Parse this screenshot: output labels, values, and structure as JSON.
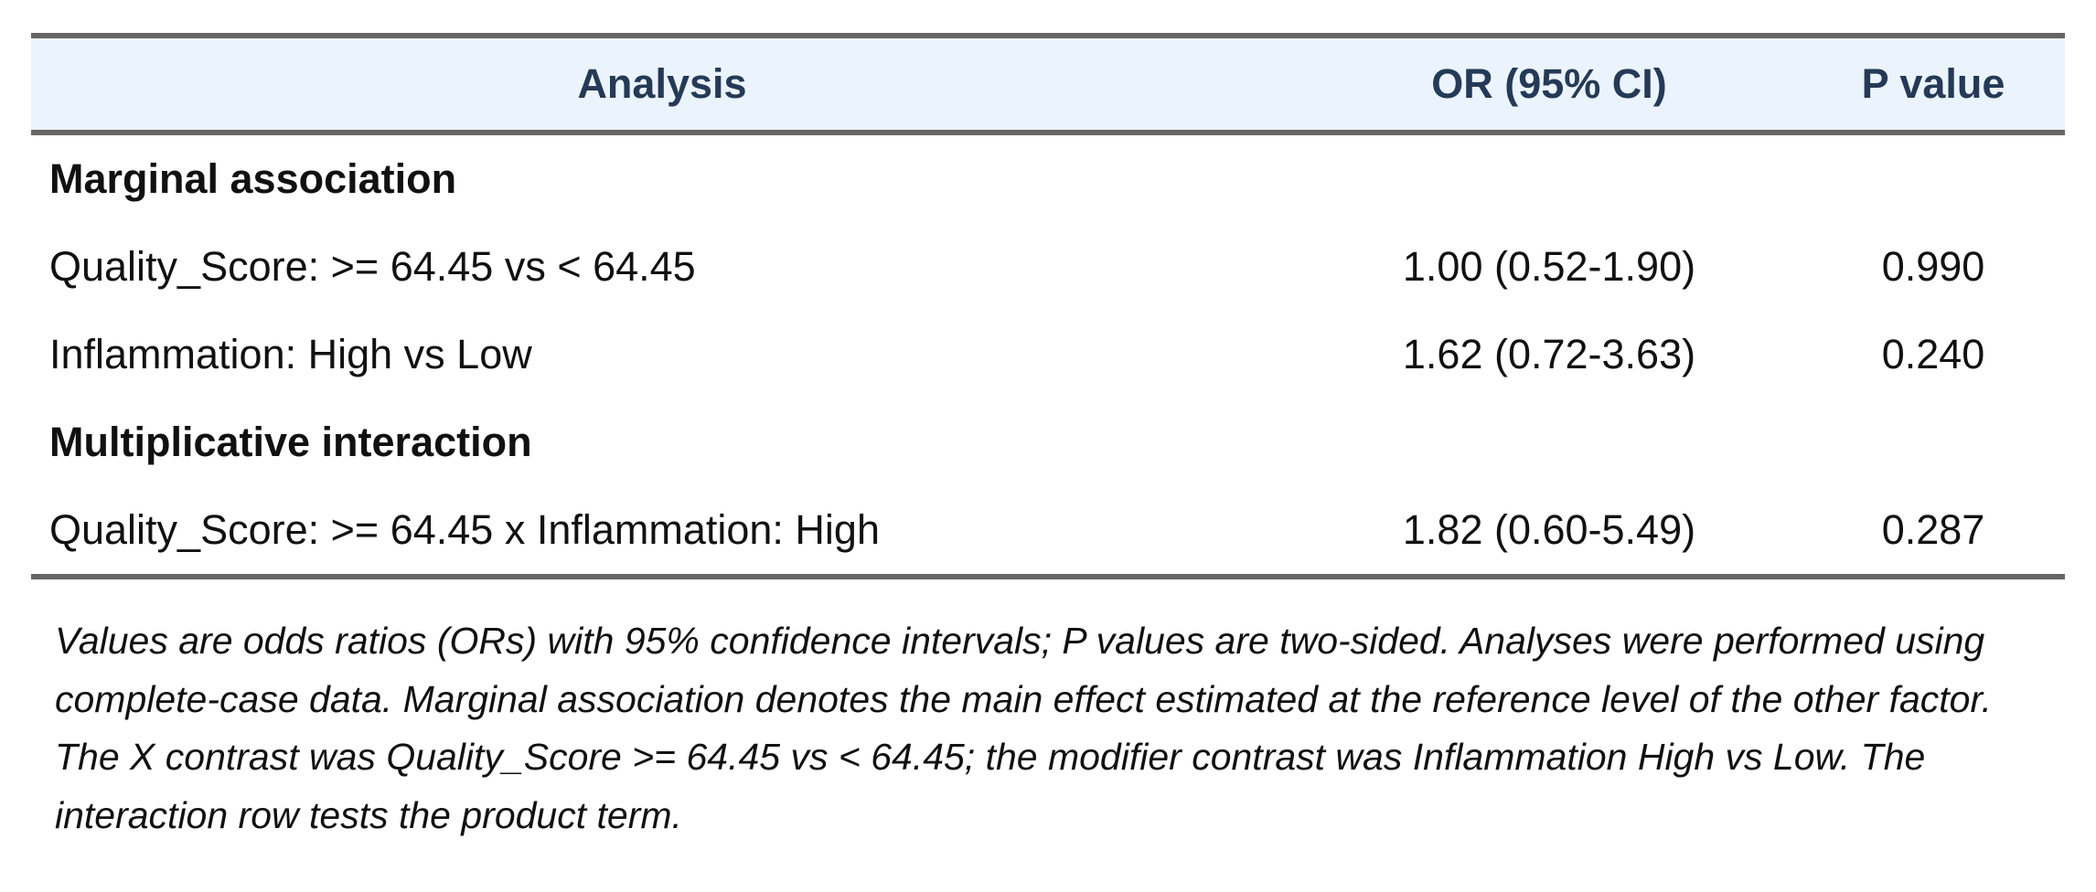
{
  "table": {
    "header": [
      "Analysis",
      "OR (95% CI)",
      "P value"
    ],
    "sections": [
      {
        "title": "Marginal association",
        "rows": [
          [
            "Quality_Score: >= 64.45 vs < 64.45",
            "1.00 (0.52-1.90)",
            "0.990"
          ],
          [
            "Inflammation: High vs Low",
            "1.62 (0.72-3.63)",
            "0.240"
          ]
        ]
      },
      {
        "title": "Multiplicative interaction",
        "rows": [
          [
            "Quality_Score: >= 64.45 x Inflammation: High",
            "1.82 (0.60-5.49)",
            "0.287"
          ]
        ]
      }
    ]
  },
  "footnote": "Values are odds ratios (ORs) with 95% confidence intervals; P values are two-sided. Analyses were performed using complete-case data. Marginal association denotes the main effect estimated at the reference level of the other factor. The X contrast was Quality_Score >= 64.45 vs < 64.45; the modifier contrast was Inflammation High vs Low. The interaction row tests the product term."
}
